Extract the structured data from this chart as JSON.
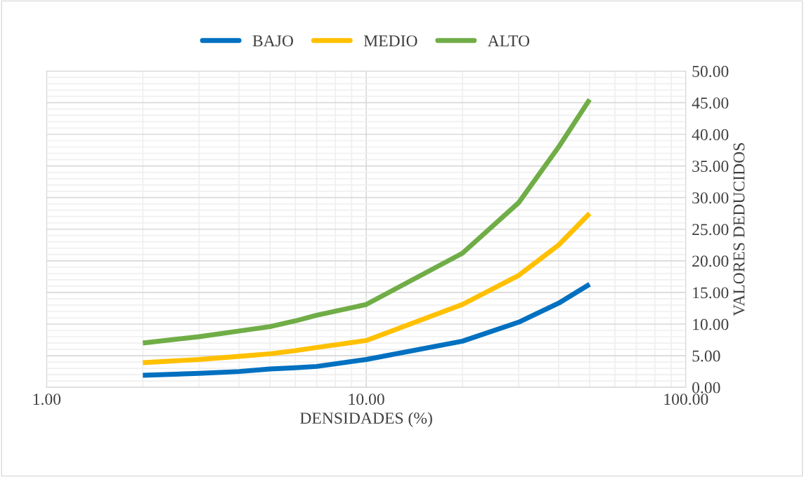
{
  "chart_data": {
    "type": "line",
    "xlabel": "DENSIDADES (%)",
    "ylabel": "VALORES DEDUCIDOS",
    "log": "x",
    "grid": true,
    "legend": "top",
    "line_style": "solid",
    "marker": "none",
    "x": [
      2,
      3,
      4,
      5,
      6,
      7,
      10,
      20,
      30,
      40,
      50
    ],
    "xlim": [
      1,
      100
    ],
    "xticks": [
      {
        "value": 1,
        "label": "1.00"
      },
      {
        "value": 10,
        "label": "10.00"
      },
      {
        "value": 100,
        "label": "100.00"
      }
    ],
    "ylim": [
      0,
      50
    ],
    "yticks": [
      {
        "value": 0,
        "label": "0.00"
      },
      {
        "value": 5,
        "label": "5.00"
      },
      {
        "value": 10,
        "label": "10.00"
      },
      {
        "value": 15,
        "label": "15.00"
      },
      {
        "value": 20,
        "label": "20.00"
      },
      {
        "value": 25,
        "label": "25.00"
      },
      {
        "value": 30,
        "label": "30.00"
      },
      {
        "value": 35,
        "label": "35.00"
      },
      {
        "value": 40,
        "label": "40.00"
      },
      {
        "value": 45,
        "label": "45.00"
      },
      {
        "value": 50,
        "label": "50.00"
      }
    ],
    "series": [
      {
        "name": "BAJO",
        "color": "#0070c0",
        "values": [
          1.9,
          2.2,
          2.5,
          2.9,
          3.1,
          3.3,
          4.4,
          7.3,
          10.3,
          13.3,
          16.3
        ]
      },
      {
        "name": "MEDIO",
        "color": "#ffc000",
        "values": [
          3.9,
          4.4,
          4.9,
          5.3,
          5.8,
          6.3,
          7.4,
          13.1,
          17.7,
          22.5,
          27.5
        ]
      },
      {
        "name": "ALTO",
        "color": "#70ad47",
        "values": [
          7.0,
          8.0,
          8.9,
          9.6,
          10.5,
          11.4,
          13.1,
          21.2,
          29.2,
          38.0,
          45.5
        ]
      }
    ]
  }
}
